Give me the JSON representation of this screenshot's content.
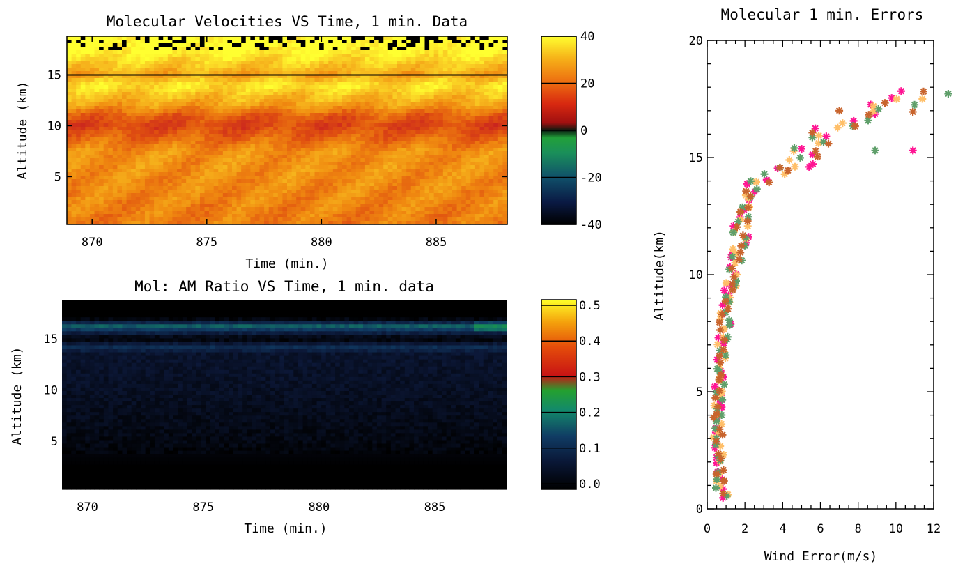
{
  "chart_data": [
    {
      "type": "heatmap",
      "title": "Molecular Velocities VS Time, 1 min. Data",
      "xlabel": "Time (min.)",
      "ylabel": "Altitude (km)",
      "xlim": [
        868.9,
        888.1
      ],
      "ylim": [
        0.3,
        18.8
      ],
      "xticks": [
        870,
        875,
        880,
        885
      ],
      "yticks": [
        5,
        10,
        15
      ],
      "colorbar": {
        "ticks": [
          "40",
          "20",
          "0",
          "-20",
          "-40"
        ],
        "min": -40,
        "max": 40
      },
      "overlay_line_altitude": 15.0,
      "profile_mean": [
        {
          "alt": 0.5,
          "v": 22
        },
        {
          "alt": 2,
          "v": 23
        },
        {
          "alt": 4,
          "v": 24
        },
        {
          "alt": 6,
          "v": 25
        },
        {
          "alt": 7.5,
          "v": 25
        },
        {
          "alt": 9,
          "v": 18
        },
        {
          "alt": 10,
          "v": 14
        },
        {
          "alt": 11,
          "v": 18
        },
        {
          "alt": 12,
          "v": 27
        },
        {
          "alt": 13,
          "v": 32
        },
        {
          "alt": 14,
          "v": 37
        },
        {
          "alt": 15,
          "v": 28
        },
        {
          "alt": 16,
          "v": 33
        },
        {
          "alt": 17,
          "v": 38
        },
        {
          "alt": 18,
          "v": 41
        }
      ]
    },
    {
      "type": "heatmap",
      "title": "Mol: AM Ratio VS Time, 1 min. data",
      "xlabel": "Time (min.)",
      "ylabel": "Altitude (km)",
      "xlim": [
        868.9,
        888.1
      ],
      "ylim": [
        0.3,
        18.8
      ],
      "xticks": [
        870,
        875,
        880,
        885
      ],
      "yticks": [
        5,
        10,
        15
      ],
      "colorbar": {
        "ticks": [
          "0.5",
          "0.4",
          "0.3",
          "0.2",
          "0.1",
          "0.0"
        ],
        "min": 0.0,
        "max": 0.5
      },
      "profile_mean": [
        {
          "alt": 0.5,
          "v": 0.0
        },
        {
          "alt": 2.5,
          "v": 0.0
        },
        {
          "alt": 5,
          "v": 0.02
        },
        {
          "alt": 10,
          "v": 0.04
        },
        {
          "alt": 13.5,
          "v": 0.05
        },
        {
          "alt": 14.2,
          "v": 0.1
        },
        {
          "alt": 15,
          "v": 0.0
        },
        {
          "alt": 16.2,
          "v": 0.16
        },
        {
          "alt": 17,
          "v": 0.0
        }
      ]
    },
    {
      "type": "scatter",
      "title": "Molecular 1 min. Errors",
      "xlabel": "Wind Error(m/s)",
      "ylabel": "Altitude(km)",
      "xlim": [
        0,
        12
      ],
      "ylim": [
        0,
        20
      ],
      "xticks": [
        0,
        2,
        4,
        6,
        8,
        10,
        12
      ],
      "yticks": [
        0,
        5,
        10,
        15,
        20
      ],
      "series_colors": [
        "#ff1493",
        "#ffbf69",
        "#5f9f6a",
        "#c8642d"
      ],
      "profile_center": [
        {
          "alt": 0.5,
          "err": 1.0
        },
        {
          "alt": 1,
          "err": 0.7
        },
        {
          "alt": 3,
          "err": 0.6
        },
        {
          "alt": 5,
          "err": 0.6
        },
        {
          "alt": 7,
          "err": 0.8
        },
        {
          "alt": 9,
          "err": 1.1
        },
        {
          "alt": 10.5,
          "err": 1.6
        },
        {
          "alt": 12,
          "err": 1.8
        },
        {
          "alt": 13,
          "err": 2.1
        },
        {
          "alt": 13.8,
          "err": 2.6
        },
        {
          "alt": 14.2,
          "err": 3.5
        },
        {
          "alt": 14.8,
          "err": 4.8
        },
        {
          "alt": 15.5,
          "err": 5.8
        },
        {
          "alt": 16.3,
          "err": 7.0
        },
        {
          "alt": 17,
          "err": 9.5
        },
        {
          "alt": 17.8,
          "err": 12.0
        }
      ],
      "outliers": [
        {
          "x": 10.9,
          "y": 15.3
        },
        {
          "x": 11.4,
          "y": 17.5
        },
        {
          "x": 8.9,
          "y": 15.3
        },
        {
          "x": 7.0,
          "y": 17.0
        },
        {
          "x": 5.4,
          "y": 14.6
        }
      ]
    }
  ],
  "colors": {
    "velocity_scale": [
      "#000000",
      "#0a1a44",
      "#10506a",
      "#1a8f5a",
      "#2aa02a",
      "#1a8f3a",
      "#c82020",
      "#e05010",
      "#f08a10",
      "#f8c020",
      "#ffff30"
    ],
    "ratio_scale": [
      "#000000",
      "#0c1838",
      "#103c64",
      "#148064",
      "#1e9c3c",
      "#c81414",
      "#e04c0a",
      "#f4a00c",
      "#ffff28"
    ]
  }
}
